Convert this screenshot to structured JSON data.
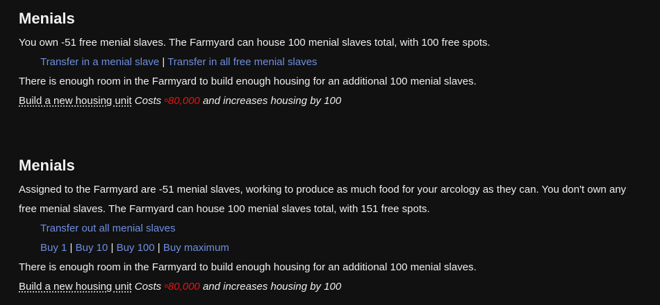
{
  "section1": {
    "title": "Menials",
    "text1": "You own -51 free menial slaves. The Farmyard can house 100 menial slaves total, with 100 free spots.",
    "links": [
      "Transfer in a menial slave",
      "Transfer in all free menial slaves"
    ],
    "text2": "There is enough room in the Farmyard to build enough housing for an additional 100 menial slaves.",
    "build_label": "Build a new housing unit",
    "costs_prefix": "Costs",
    "cash_symbol": "¤",
    "cost": "80,000",
    "costs_suffix": "and increases housing by 100"
  },
  "section2": {
    "title": "Menials",
    "text1": "Assigned to the Farmyard are -51 menial slaves, working to produce as much food for your arcology as they can. You don't own any free menial slaves. The Farmyard can house 100 menial slaves total, with 151 free spots.",
    "transfer_out": "Transfer out all menial slaves",
    "buy_links": [
      "Buy 1",
      "Buy 10",
      "Buy 100",
      "Buy maximum"
    ],
    "text2": "There is enough room in the Farmyard to build enough housing for an additional 100 menial slaves.",
    "build_label": "Build a new housing unit",
    "costs_prefix": "Costs",
    "cash_symbol": "¤",
    "cost": "80,000",
    "costs_suffix": "and increases housing by 100"
  },
  "separator": "|",
  "colors": {
    "background": "#111111",
    "link": "#6e8ee0",
    "cost": "#ee1111",
    "text": "#eeeeee"
  }
}
